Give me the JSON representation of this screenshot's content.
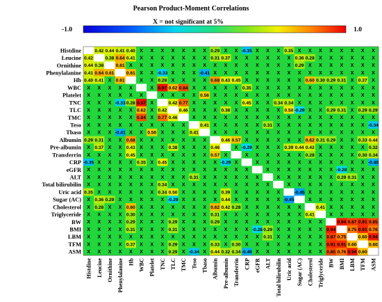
{
  "chart_data": {
    "type": "heatmap",
    "title": "Pearson Product-Moment Correlations",
    "colorbar": {
      "min_label": "-1.0",
      "max_label": "1.0",
      "note": "X = not significant at 5%",
      "range": [
        -1.0,
        1.0
      ]
    },
    "variables": [
      "Histdine",
      "Leucine",
      "Ornithine",
      "Phenylalanine",
      "Hb",
      "WBC",
      "Platelet",
      "TNC",
      "TLC",
      "TMC",
      "Teso",
      "Tbaso",
      "Albumin",
      "Pre-albumin",
      "Transferrin",
      "CRP",
      "eGFR",
      "ALT",
      "Total bilirubilin",
      "Uric acid",
      "Sugar (AC)",
      "Cholesterol",
      "Triglyceride",
      "BW",
      "BMI",
      "LBM",
      "TFM",
      "ASM"
    ],
    "not_significant_marker": "X",
    "significant_values": [
      {
        "row": "Histdine",
        "col": "Leucine",
        "value": 0.42
      },
      {
        "row": "Histdine",
        "col": "Ornithine",
        "value": 0.44
      },
      {
        "row": "Histdine",
        "col": "Phenylalanine",
        "value": 0.41
      },
      {
        "row": "Histdine",
        "col": "Hb",
        "value": 0.4
      },
      {
        "row": "Histdine",
        "col": "Albumin",
        "value": 0.29
      },
      {
        "row": "Histdine",
        "col": "CRP",
        "value": -0.35
      },
      {
        "row": "Histdine",
        "col": "Uric acid",
        "value": 0.35
      },
      {
        "row": "Leucine",
        "col": "Ornithine",
        "value": 0.38
      },
      {
        "row": "Leucine",
        "col": "Phenylalanine",
        "value": 0.64
      },
      {
        "row": "Leucine",
        "col": "Hb",
        "value": 0.41
      },
      {
        "row": "Leucine",
        "col": "Albumin",
        "value": 0.31
      },
      {
        "row": "Leucine",
        "col": "Pre-albumin",
        "value": 0.37
      },
      {
        "row": "Leucine",
        "col": "Sugar (AC)",
        "value": 0.36
      },
      {
        "row": "Leucine",
        "col": "Cholesterol",
        "value": 0.28
      },
      {
        "row": "Ornithine",
        "col": "Phenylalanine",
        "value": 0.61
      },
      {
        "row": "Ornithine",
        "col": "Sugar (AC)",
        "value": 0.29
      },
      {
        "row": "Phenylalanine",
        "col": "Hb",
        "value": 0.61
      },
      {
        "row": "Phenylalanine",
        "col": "TNC",
        "value": -0.33
      },
      {
        "row": "Phenylalanine",
        "col": "Tbaso",
        "value": -0.41
      },
      {
        "row": "Hb",
        "col": "TNC",
        "value": 0.28
      },
      {
        "row": "Hb",
        "col": "Albumin",
        "value": 0.68
      },
      {
        "row": "Hb",
        "col": "Pre-albumin",
        "value": 0.43
      },
      {
        "row": "Hb",
        "col": "Transferrin",
        "value": 0.45
      },
      {
        "row": "Hb",
        "col": "Cholesterol",
        "value": 0.6
      },
      {
        "row": "Hb",
        "col": "Triglyceride",
        "value": 0.3
      },
      {
        "row": "Hb",
        "col": "BW",
        "value": 0.29
      },
      {
        "row": "Hb",
        "col": "BMI",
        "value": 0.31
      },
      {
        "row": "Hb",
        "col": "TFM",
        "value": 0.37
      },
      {
        "row": "WBC",
        "col": "TNC",
        "value": 0.97
      },
      {
        "row": "WBC",
        "col": "TLC",
        "value": 0.62
      },
      {
        "row": "WBC",
        "col": "TMC",
        "value": 0.84
      },
      {
        "row": "WBC",
        "col": "CRP",
        "value": 0.35
      },
      {
        "row": "Platelet",
        "col": "Tbaso",
        "value": 0.56
      },
      {
        "row": "TNC",
        "col": "TLC",
        "value": 0.42
      },
      {
        "row": "TNC",
        "col": "TMC",
        "value": 0.77
      },
      {
        "row": "TNC",
        "col": "CRP",
        "value": 0.45
      },
      {
        "row": "TNC",
        "col": "Uric acid",
        "value": 0.34
      },
      {
        "row": "TLC",
        "col": "TMC",
        "value": 0.46
      },
      {
        "row": "TLC",
        "col": "Pre-albumin",
        "value": 0.38
      },
      {
        "row": "TLC",
        "col": "Uric acid",
        "value": 0.5
      },
      {
        "row": "TLC",
        "col": "Sugar (AC)",
        "value": -0.29
      },
      {
        "row": "TLC",
        "col": "BW",
        "value": 0.29
      },
      {
        "row": "TLC",
        "col": "BMI",
        "value": 0.31
      },
      {
        "row": "TLC",
        "col": "TFM",
        "value": 0.29
      },
      {
        "row": "TLC",
        "col": "ASM",
        "value": 0.29
      },
      {
        "row": "Teso",
        "col": "Tbaso",
        "value": 0.41
      },
      {
        "row": "Teso",
        "col": "ALT",
        "value": 0.31
      },
      {
        "row": "Teso",
        "col": "ASM",
        "value": -0.34
      },
      {
        "row": "Albumin",
        "col": "Pre-albumin",
        "value": 0.46
      },
      {
        "row": "Albumin",
        "col": "Transferrin",
        "value": 0.57
      },
      {
        "row": "Albumin",
        "col": "Cholesterol",
        "value": 0.62
      },
      {
        "row": "Albumin",
        "col": "Triglyceride",
        "value": 0.31
      },
      {
        "row": "Albumin",
        "col": "BW",
        "value": 0.29
      },
      {
        "row": "Albumin",
        "col": "TFM",
        "value": 0.33
      },
      {
        "row": "Albumin",
        "col": "ASM",
        "value": 0.44
      },
      {
        "row": "Pre-albumin",
        "col": "CRP",
        "value": -0.29
      },
      {
        "row": "Pre-albumin",
        "col": "Uric acid",
        "value": 0.39
      },
      {
        "row": "Pre-albumin",
        "col": "Sugar (AC)",
        "value": 0.44
      },
      {
        "row": "Pre-albumin",
        "col": "Cholesterol",
        "value": 0.42
      },
      {
        "row": "Pre-albumin",
        "col": "ASM",
        "value": 0.32
      },
      {
        "row": "Transferrin",
        "col": "Cholesterol",
        "value": 0.28
      },
      {
        "row": "Transferrin",
        "col": "TFM",
        "value": 0.3
      },
      {
        "row": "Transferrin",
        "col": "ASM",
        "value": 0.34
      },
      {
        "row": "CRP",
        "col": "ASM",
        "value": -0.4
      },
      {
        "row": "eGFR",
        "col": "BMI",
        "value": -0.28
      },
      {
        "row": "ALT",
        "col": "BMI",
        "value": 0.29
      },
      {
        "row": "ALT",
        "col": "LBM",
        "value": 0.31
      },
      {
        "row": "Total bilirubilin",
        "col": "TNC",
        "value": 0.34
      },
      {
        "row": "Uric acid",
        "col": "Sugar (AC)",
        "value": -0.45
      },
      {
        "row": "Cholesterol",
        "col": "Triglyceride",
        "value": 0.41
      },
      {
        "row": "BW",
        "col": "BMI",
        "value": 0.94
      },
      {
        "row": "BW",
        "col": "LBM",
        "value": 0.87
      },
      {
        "row": "BW",
        "col": "TFM",
        "value": 0.91
      },
      {
        "row": "BW",
        "col": "ASM",
        "value": 0.85
      },
      {
        "row": "BMI",
        "col": "LBM",
        "value": 0.75
      },
      {
        "row": "BMI",
        "col": "TFM",
        "value": 0.91
      },
      {
        "row": "BMI",
        "col": "ASM",
        "value": 0.76
      },
      {
        "row": "LBM",
        "col": "TFM",
        "value": 0.6
      },
      {
        "row": "LBM",
        "col": "ASM",
        "value": 0.94
      },
      {
        "row": "TFM",
        "col": "ASM",
        "value": 0.6
      }
    ],
    "grid": false,
    "legend": "top"
  }
}
